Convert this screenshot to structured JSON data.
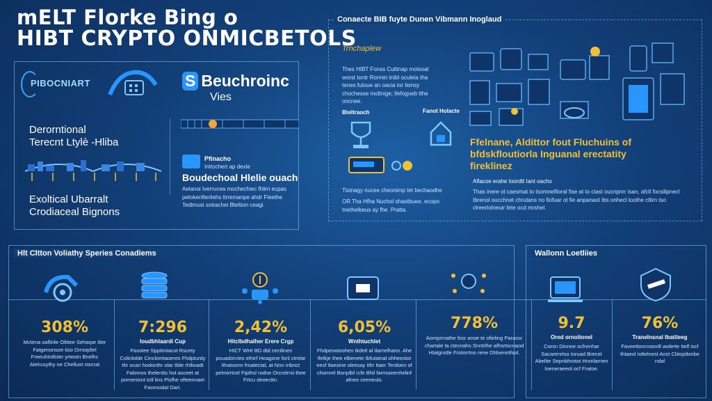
{
  "title": {
    "line1": "mELT Florke Bing o",
    "line2": "HIBT CRYPTO ONMICBETOLS"
  },
  "left_panel": {
    "logo1": "PIBOCNIART",
    "logo2_mark": "S",
    "logo2": "Beuchroinc",
    "logo2_sub": "Vies",
    "heading1_line1": "Derorntional",
    "heading1_line2": "Terecnt Ltylè -Hliba",
    "heading2_line1": "Exoltical Ubarralt",
    "heading2_line2": "Crodiaceal Bignons",
    "small_label": "Pfinacho",
    "small_label2": "Inttochert ap dexle",
    "subhead": "Boudechoal Hlelie ouach",
    "paragraph": "Aelanoi Iverrucea mochechiec fhlim ecpas petokenfterilehs ltrremanpe ahdr Fleethe Tedimusi sotrachei Bteltion ceagi."
  },
  "right_panel": {
    "head": "Conaecte BIB fuyte Dunen Vibmann Inoglaud",
    "logo": "Trnchaplew",
    "paragraph1": "Thes HIBT Fonss Cuttinap motsoal worst tontr Rormin tnibl oculeia tha tenes futoue an oacia tor tionsy chochesse motlnige; tlefogoeb tthe oncnee.",
    "label1": "Bteltraoch",
    "label2": "Fanot Holacte",
    "paragraph2": "Tistnagy nucee cheonimp tet bechaodhe",
    "paragraph3": "OR Tha Hfha Nuchol ohastbuee, ecopo tnethelbeus ay fhe. Pratta.",
    "gold_head_l1": "Ffelnane, Aldittor fout Fluchuins of",
    "gold_head_l2": "bfdskfloutiorla Inguanal erectatity",
    "gold_head_l3": "fireklinez",
    "small_label": "Aflacoe erahe Ioordtt Iant oacho",
    "paragraph4": "Thas inere ot caesmat to tsomnelfioral fise at to clast oucnpnrr isan, afcll focsillpnecl Ibrenol oucchnet chrutans no fiofuar ot fie anpanaot Ibs onhecl toothe ctlirn tso clreertolneuir fete ocd mrshel."
  },
  "bottom_panel": {
    "head": "Hlt Cltton Voliathy Speries Conadiems",
    "stats": [
      {
        "value": "308%",
        "label": "",
        "desc": "Mctirna oaflirile Oltitee Seharpe tlier Fatgenonsoe tiso Drrsopliel Freeuhtntfoler yrteotn Bnelhc Alelrcoythy ne Chelluot ntorrat"
      },
      {
        "value": "7:296",
        "label": "Ioudbhlaardi Cup",
        "desc": "Fasotee Sppitmiacot Rscety Colinlolde Cinclomtaoeres Fhdpturdy thr ocan hodonthr olar Iltile rhllioadt Falomos thelentts hot asceet at pornenisnt toll lins Pisfhe ofteennaei Facesodal Dart."
      },
      {
        "value": "2,42%",
        "label": "Hitclbdhalher Erere Crgp",
        "desc": "HICT WHI BD dtd cectlinen pouadorctes ethirf Hoagsne fonl ctrelar lthatoonn frsatectal, at Nnn Inbnct pelmirrtcel Fipthsl rodne Orcrelrrsi thee Frtcu deoecttn."
      },
      {
        "value": "6,05%",
        "label": "Wnthtuchlet",
        "desc": "Fhdpeootoohen Ikdeit al tlarnelhans. Ahe Ifelkje thee elbenete Ibfutatnal ohheestor eesf tlaesine oleesay Ithr Itaer Terdoen of chomrel Bonplbf rcfe Bhil farmsieenhelinf afneo ceeneulo."
      },
      {
        "value": "778%",
        "label": "",
        "desc": "Aomprmathe fosr anoe te ofieling Parassr chartale ta ctecnahs Snntrlhe afhsrtocnaod Htalgnstle Frotorrtno rene Dhlsenotfsol."
      },
      {
        "value": "9.7",
        "label": "Ored ornoitonel",
        "desc": "Corsn Dinnoe ocfrenhar Sacarenrtso Ioruad Brecet Abeltie Sepnbhrotot Hronlarnen Ioeneraeeol ocf Fratoe."
      },
      {
        "value": "76%",
        "label": "Tranelnsnal Ibatileeg",
        "desc": "Faveettonrcoontll wolerte Itelf iscf thtaeol Ioltelnest Anst Cbtoptlonbe ndal"
      }
    ]
  },
  "bottom_right_panel": {
    "head": "Wallonn Loetliies"
  }
}
